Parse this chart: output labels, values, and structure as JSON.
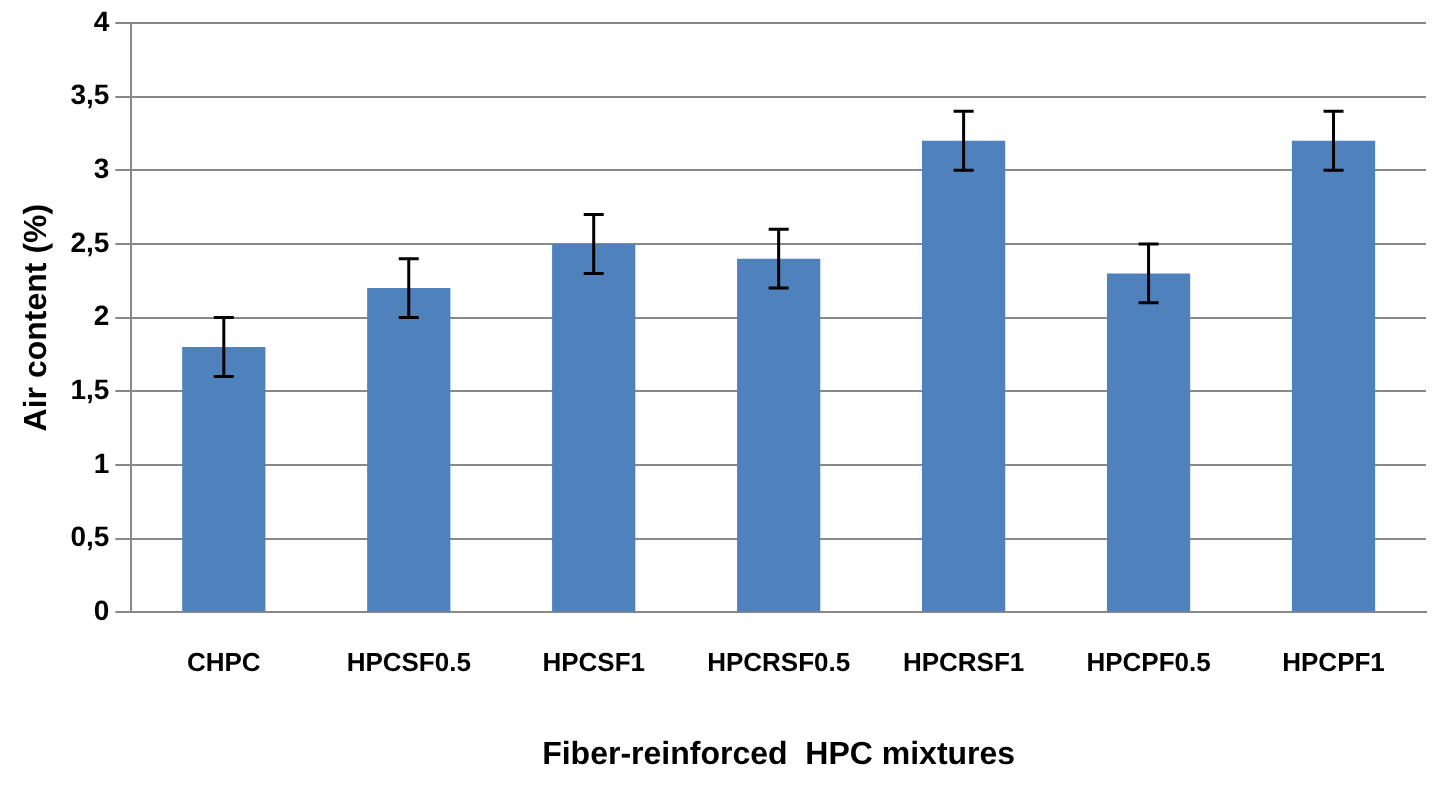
{
  "chart_data": {
    "type": "bar",
    "xlabel": "Fiber-reinforced  HPC mixtures",
    "ylabel": "Air content (%)",
    "categories": [
      "CHPC",
      "HPCSF0.5",
      "HPCSF1",
      "HPCRSF0.5",
      "HPCRSF1",
      "HPCPF0.5",
      "HPCPF1"
    ],
    "values": [
      1.8,
      2.2,
      2.5,
      2.4,
      3.2,
      2.3,
      3.2
    ],
    "errors": [
      0.2,
      0.2,
      0.2,
      0.2,
      0.2,
      0.2,
      0.2
    ],
    "color": "#4f81bd",
    "ylim": [
      0,
      4
    ],
    "yticks": [
      0,
      {
        "value": 0.5,
        "label": "0,5"
      },
      1,
      {
        "value": 1.5,
        "label": "1,5"
      },
      2,
      {
        "value": 2.5,
        "label": "2,5"
      },
      3,
      {
        "value": 3.5,
        "label": "3,5"
      },
      4
    ],
    "grid": "y",
    "legend": false
  }
}
